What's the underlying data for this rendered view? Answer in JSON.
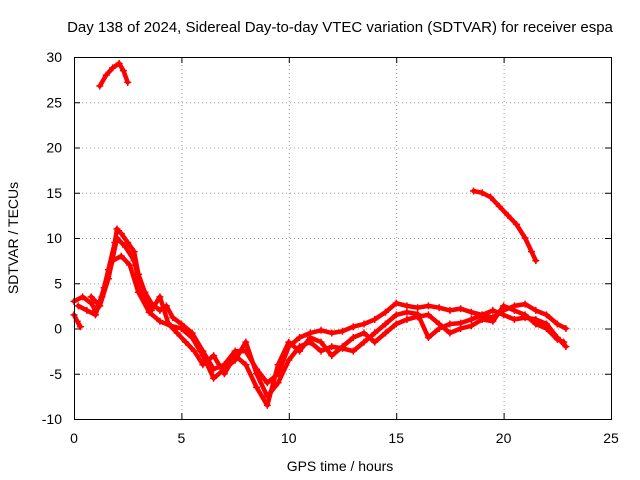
{
  "chart_data": {
    "type": "scatter",
    "title": "Day 138 of 2024, Sidereal Day-to-day VTEC variation (SDTVAR) for receiver espa",
    "xlabel": "GPS time / hours",
    "ylabel": "SDTVAR / TECUs",
    "xlim": [
      0,
      25
    ],
    "ylim": [
      -10,
      30
    ],
    "xticks": [
      0,
      5,
      10,
      15,
      20,
      25
    ],
    "yticks": [
      -10,
      -5,
      0,
      5,
      10,
      15,
      20,
      25,
      30
    ],
    "grid": true,
    "marker": "plus",
    "color": "#ff0000",
    "series": [
      {
        "name": "trace-1",
        "points": [
          [
            0.0,
            1.5
          ],
          [
            0.15,
            0.8
          ],
          [
            0.3,
            0.2
          ]
        ]
      },
      {
        "name": "trace-2",
        "points": [
          [
            0.0,
            3.0
          ],
          [
            0.4,
            3.5
          ],
          [
            0.8,
            2.8
          ],
          [
            1.0,
            2.0
          ],
          [
            1.3,
            3.5
          ],
          [
            1.6,
            6.5
          ],
          [
            1.9,
            9.5
          ],
          [
            2.0,
            11.0
          ],
          [
            2.2,
            10.5
          ],
          [
            2.5,
            9.5
          ],
          [
            2.8,
            8.5
          ],
          [
            3.0,
            6.0
          ],
          [
            3.3,
            4.0
          ],
          [
            3.6,
            2.8
          ],
          [
            4.0,
            2.0
          ],
          [
            4.3,
            2.5
          ],
          [
            4.6,
            1.2
          ],
          [
            5.0,
            0.5
          ],
          [
            5.5,
            -0.5
          ],
          [
            6.0,
            -2.5
          ],
          [
            6.5,
            -4.5
          ],
          [
            7.0,
            -4.0
          ],
          [
            7.5,
            -2.5
          ],
          [
            8.0,
            -2.5
          ],
          [
            8.5,
            -4.5
          ],
          [
            9.0,
            -6.0
          ],
          [
            9.5,
            -5.0
          ],
          [
            10.0,
            -2.0
          ],
          [
            10.5,
            -1.0
          ],
          [
            11.0,
            -0.5
          ],
          [
            11.5,
            -0.2
          ],
          [
            12.0,
            -0.5
          ],
          [
            12.5,
            -0.3
          ],
          [
            13.0,
            0.2
          ],
          [
            13.5,
            0.5
          ],
          [
            14.0,
            1.0
          ],
          [
            14.5,
            1.8
          ],
          [
            15.0,
            2.8
          ],
          [
            15.5,
            2.5
          ],
          [
            16.0,
            2.3
          ],
          [
            16.5,
            2.5
          ],
          [
            17.0,
            2.3
          ],
          [
            17.5,
            2.0
          ],
          [
            18.0,
            2.2
          ],
          [
            18.5,
            1.8
          ],
          [
            19.0,
            1.5
          ],
          [
            19.5,
            1.2
          ],
          [
            20.0,
            2.0
          ],
          [
            20.5,
            2.5
          ],
          [
            21.0,
            2.7
          ],
          [
            21.5,
            2.0
          ],
          [
            22.0,
            1.5
          ],
          [
            22.5,
            0.5
          ],
          [
            22.9,
            0.0
          ]
        ]
      },
      {
        "name": "trace-3",
        "points": [
          [
            0.2,
            2.5
          ],
          [
            0.6,
            2.0
          ],
          [
            1.0,
            1.5
          ],
          [
            1.4,
            4.5
          ],
          [
            1.8,
            7.5
          ],
          [
            2.2,
            8.0
          ],
          [
            2.6,
            7.0
          ],
          [
            3.0,
            4.0
          ],
          [
            3.5,
            1.8
          ],
          [
            4.0,
            0.8
          ],
          [
            4.5,
            0.3
          ],
          [
            5.0,
            0.0
          ],
          [
            5.5,
            -1.0
          ],
          [
            6.0,
            -3.0
          ],
          [
            6.5,
            -5.5
          ],
          [
            7.0,
            -4.5
          ],
          [
            7.5,
            -3.5
          ],
          [
            8.0,
            -1.5
          ],
          [
            8.5,
            -5.0
          ],
          [
            9.0,
            -7.5
          ],
          [
            9.5,
            -6.0
          ],
          [
            10.0,
            -3.5
          ],
          [
            10.5,
            -2.0
          ],
          [
            11.0,
            -1.5
          ],
          [
            11.5,
            -2.5
          ],
          [
            12.0,
            -2.0
          ],
          [
            12.5,
            -2.2
          ],
          [
            13.0,
            -2.5
          ],
          [
            13.5,
            -1.5
          ],
          [
            14.0,
            -0.5
          ],
          [
            14.5,
            0.5
          ],
          [
            15.0,
            1.5
          ],
          [
            15.5,
            1.8
          ],
          [
            16.0,
            1.6
          ],
          [
            16.5,
            -1.0
          ],
          [
            17.0,
            0.0
          ],
          [
            17.5,
            0.5
          ],
          [
            18.0,
            0.6
          ],
          [
            18.5,
            1.0
          ],
          [
            19.0,
            1.5
          ],
          [
            19.5,
            2.0
          ],
          [
            20.0,
            1.5
          ],
          [
            20.5,
            1.0
          ],
          [
            21.0,
            1.2
          ],
          [
            21.5,
            1.0
          ],
          [
            22.0,
            0.5
          ],
          [
            22.5,
            -1.0
          ],
          [
            22.9,
            -2.0
          ]
        ]
      },
      {
        "name": "trace-4",
        "points": [
          [
            0.8,
            3.5
          ],
          [
            1.2,
            2.5
          ],
          [
            1.6,
            5.5
          ],
          [
            2.0,
            10.0
          ],
          [
            2.4,
            9.0
          ],
          [
            2.8,
            7.5
          ],
          [
            3.2,
            3.5
          ],
          [
            3.6,
            2.0
          ],
          [
            4.0,
            3.5
          ],
          [
            4.4,
            0.5
          ],
          [
            4.8,
            -0.5
          ],
          [
            5.2,
            -1.5
          ],
          [
            5.6,
            -2.5
          ],
          [
            6.0,
            -4.0
          ],
          [
            6.5,
            -3.0
          ],
          [
            7.0,
            -5.0
          ],
          [
            7.5,
            -3.0
          ],
          [
            8.0,
            -4.0
          ],
          [
            8.5,
            -6.5
          ],
          [
            9.0,
            -8.5
          ],
          [
            9.5,
            -4.0
          ],
          [
            10.0,
            -1.5
          ],
          [
            10.5,
            -2.5
          ],
          [
            11.0,
            -1.0
          ],
          [
            11.5,
            -1.5
          ],
          [
            12.0,
            -3.0
          ],
          [
            12.5,
            -2.0
          ],
          [
            13.0,
            -1.0
          ],
          [
            13.5,
            -0.5
          ],
          [
            14.0,
            -1.5
          ],
          [
            14.5,
            -0.5
          ],
          [
            15.0,
            0.5
          ],
          [
            15.5,
            1.0
          ],
          [
            16.0,
            1.3
          ],
          [
            16.5,
            1.5
          ],
          [
            17.0,
            0.5
          ],
          [
            17.5,
            -0.5
          ],
          [
            18.0,
            0.0
          ],
          [
            18.5,
            0.3
          ],
          [
            19.0,
            1.0
          ],
          [
            19.5,
            0.8
          ],
          [
            20.0,
            2.5
          ],
          [
            20.5,
            2.0
          ],
          [
            21.0,
            1.5
          ],
          [
            21.5,
            0.5
          ],
          [
            22.0,
            0.0
          ],
          [
            22.5,
            -1.2
          ],
          [
            22.8,
            -1.5
          ]
        ]
      },
      {
        "name": "trace-5",
        "points": [
          [
            1.2,
            26.8
          ],
          [
            1.5,
            28.0
          ],
          [
            1.8,
            28.8
          ],
          [
            2.1,
            29.3
          ],
          [
            2.3,
            28.5
          ],
          [
            2.5,
            27.2
          ]
        ]
      },
      {
        "name": "trace-6",
        "points": [
          [
            18.6,
            15.2
          ],
          [
            19.0,
            15.0
          ],
          [
            19.4,
            14.5
          ],
          [
            19.8,
            13.5
          ],
          [
            20.2,
            12.5
          ],
          [
            20.6,
            11.5
          ],
          [
            21.0,
            10.0
          ],
          [
            21.3,
            8.5
          ],
          [
            21.5,
            7.5
          ]
        ]
      }
    ]
  }
}
